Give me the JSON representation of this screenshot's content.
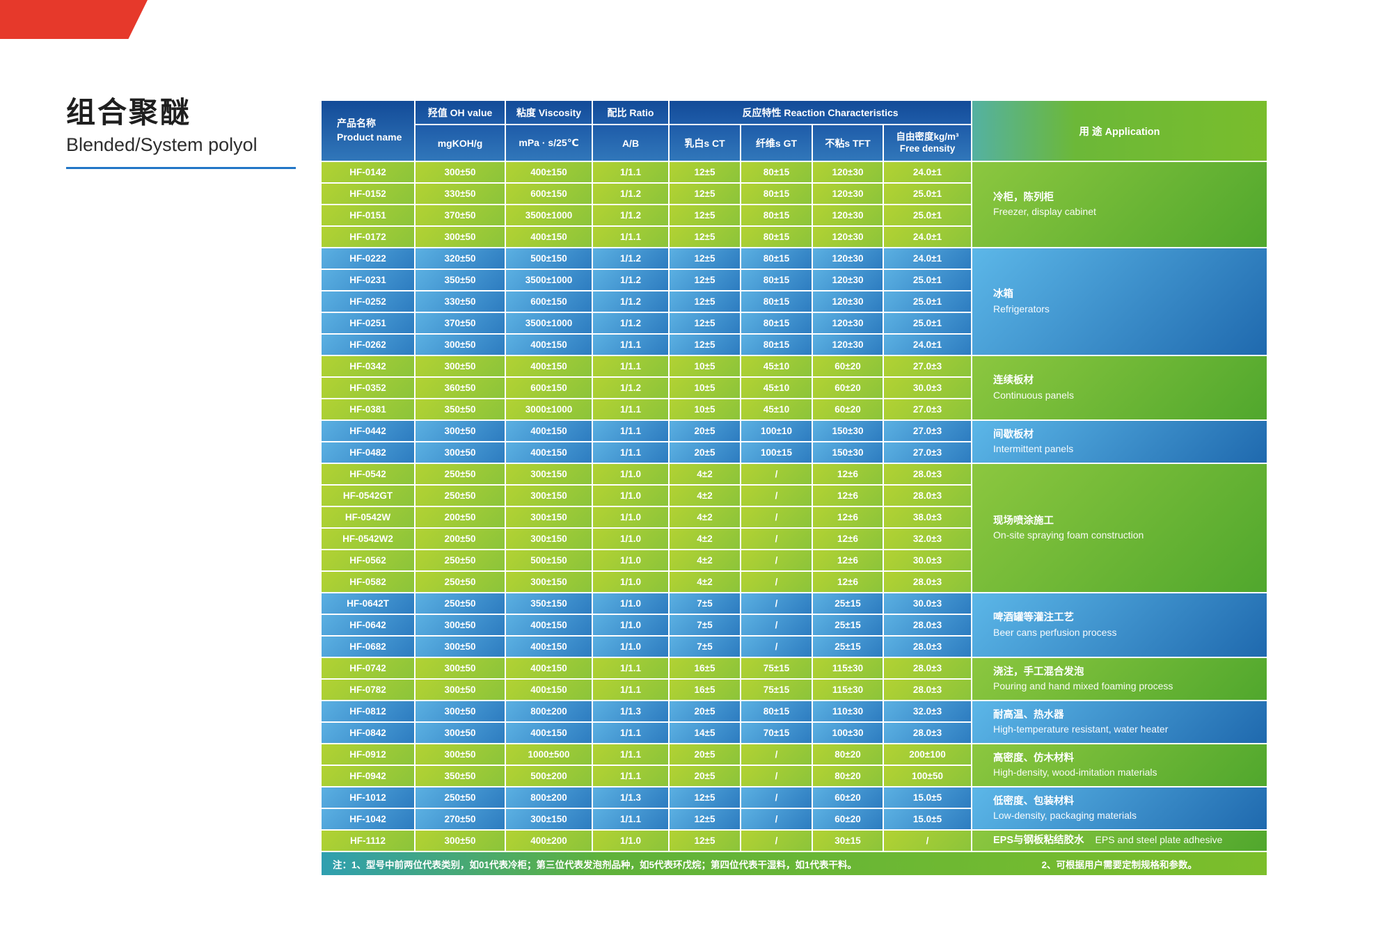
{
  "page": {
    "title_zh": "组合聚醚",
    "title_en": "Blended/System polyol"
  },
  "colors": {
    "flag_red": "#e6392b",
    "title_rule_blue": "#2176c7",
    "header_blue": "#17519f",
    "row_green": "#9cc935",
    "row_blue": "#3f93d0",
    "app_green": "#6db434",
    "app_blue": "#3487c6",
    "note_bar_left_teal": "#2f9fb0",
    "note_bar_right_green": "#7cbe2b",
    "table_text": "#ffffff"
  },
  "table": {
    "headers": {
      "product": {
        "zh": "产品名称",
        "en": "Product name"
      },
      "oh": {
        "zh": "羟值 OH value",
        "unit": "mgKOH/g"
      },
      "viscosity": {
        "zh": "粘度 Viscosity",
        "unit": "mPa · s/25℃"
      },
      "ratio": {
        "zh": "配比 Ratio",
        "unit": "A/B"
      },
      "reaction": {
        "zh": "反应特性 Reaction Characteristics",
        "sub": [
          "乳白s CT",
          "纤维s GT",
          "不粘s TFT"
        ]
      },
      "density": {
        "zh": "自由密度kg/m³",
        "en": "Free density"
      },
      "application": "用 途 Application"
    },
    "groups": [
      {
        "color": "green",
        "application_zh": "冷柜，陈列柜",
        "application_en": "Freezer, display cabinet",
        "rows": [
          [
            "HF-0142",
            "300±50",
            "400±150",
            "1/1.1",
            "12±5",
            "80±15",
            "120±30",
            "24.0±1"
          ],
          [
            "HF-0152",
            "330±50",
            "600±150",
            "1/1.2",
            "12±5",
            "80±15",
            "120±30",
            "25.0±1"
          ],
          [
            "HF-0151",
            "370±50",
            "3500±1000",
            "1/1.2",
            "12±5",
            "80±15",
            "120±30",
            "25.0±1"
          ],
          [
            "HF-0172",
            "300±50",
            "400±150",
            "1/1.1",
            "12±5",
            "80±15",
            "120±30",
            "24.0±1"
          ]
        ]
      },
      {
        "color": "blue",
        "application_zh": "冰箱",
        "application_en": "Refrigerators",
        "rows": [
          [
            "HF-0222",
            "320±50",
            "500±150",
            "1/1.2",
            "12±5",
            "80±15",
            "120±30",
            "24.0±1"
          ],
          [
            "HF-0231",
            "350±50",
            "3500±1000",
            "1/1.2",
            "12±5",
            "80±15",
            "120±30",
            "25.0±1"
          ],
          [
            "HF-0252",
            "330±50",
            "600±150",
            "1/1.2",
            "12±5",
            "80±15",
            "120±30",
            "25.0±1"
          ],
          [
            "HF-0251",
            "370±50",
            "3500±1000",
            "1/1.2",
            "12±5",
            "80±15",
            "120±30",
            "25.0±1"
          ],
          [
            "HF-0262",
            "300±50",
            "400±150",
            "1/1.1",
            "12±5",
            "80±15",
            "120±30",
            "24.0±1"
          ]
        ]
      },
      {
        "color": "green",
        "application_zh": "连续板材",
        "application_en": "Continuous panels",
        "rows": [
          [
            "HF-0342",
            "300±50",
            "400±150",
            "1/1.1",
            "10±5",
            "45±10",
            "60±20",
            "27.0±3"
          ],
          [
            "HF-0352",
            "360±50",
            "600±150",
            "1/1.2",
            "10±5",
            "45±10",
            "60±20",
            "30.0±3"
          ],
          [
            "HF-0381",
            "350±50",
            "3000±1000",
            "1/1.1",
            "10±5",
            "45±10",
            "60±20",
            "27.0±3"
          ]
        ]
      },
      {
        "color": "blue",
        "application_zh": "间歇板材",
        "application_en": "Intermittent panels",
        "rows": [
          [
            "HF-0442",
            "300±50",
            "400±150",
            "1/1.1",
            "20±5",
            "100±10",
            "150±30",
            "27.0±3"
          ],
          [
            "HF-0482",
            "300±50",
            "400±150",
            "1/1.1",
            "20±5",
            "100±15",
            "150±30",
            "27.0±3"
          ]
        ]
      },
      {
        "color": "green",
        "application_zh": "现场喷涂施工",
        "application_en": "On-site spraying foam construction",
        "rows": [
          [
            "HF-0542",
            "250±50",
            "300±150",
            "1/1.0",
            "4±2",
            "/",
            "12±6",
            "28.0±3"
          ],
          [
            "HF-0542GT",
            "250±50",
            "300±150",
            "1/1.0",
            "4±2",
            "/",
            "12±6",
            "28.0±3"
          ],
          [
            "HF-0542W",
            "200±50",
            "300±150",
            "1/1.0",
            "4±2",
            "/",
            "12±6",
            "38.0±3"
          ],
          [
            "HF-0542W2",
            "200±50",
            "300±150",
            "1/1.0",
            "4±2",
            "/",
            "12±6",
            "32.0±3"
          ],
          [
            "HF-0562",
            "250±50",
            "500±150",
            "1/1.0",
            "4±2",
            "/",
            "12±6",
            "30.0±3"
          ],
          [
            "HF-0582",
            "250±50",
            "300±150",
            "1/1.0",
            "4±2",
            "/",
            "12±6",
            "28.0±3"
          ]
        ]
      },
      {
        "color": "blue",
        "application_zh": "啤酒罐等灌注工艺",
        "application_en": "Beer cans perfusion process",
        "rows": [
          [
            "HF-0642T",
            "250±50",
            "350±150",
            "1/1.0",
            "7±5",
            "/",
            "25±15",
            "30.0±3"
          ],
          [
            "HF-0642",
            "300±50",
            "400±150",
            "1/1.0",
            "7±5",
            "/",
            "25±15",
            "28.0±3"
          ],
          [
            "HF-0682",
            "300±50",
            "400±150",
            "1/1.0",
            "7±5",
            "/",
            "25±15",
            "28.0±3"
          ]
        ]
      },
      {
        "color": "green",
        "application_zh": "浇注，手工混合发泡",
        "application_en": "Pouring and hand mixed foaming process",
        "rows": [
          [
            "HF-0742",
            "300±50",
            "400±150",
            "1/1.1",
            "16±5",
            "75±15",
            "115±30",
            "28.0±3"
          ],
          [
            "HF-0782",
            "300±50",
            "400±150",
            "1/1.1",
            "16±5",
            "75±15",
            "115±30",
            "28.0±3"
          ]
        ]
      },
      {
        "color": "blue",
        "application_zh": "耐高温、热水器",
        "application_en": "High-temperature resistant, water heater",
        "rows": [
          [
            "HF-0812",
            "300±50",
            "800±200",
            "1/1.3",
            "20±5",
            "80±15",
            "110±30",
            "32.0±3"
          ],
          [
            "HF-0842",
            "300±50",
            "400±150",
            "1/1.1",
            "14±5",
            "70±15",
            "100±30",
            "28.0±3"
          ]
        ]
      },
      {
        "color": "green",
        "application_zh": "高密度、仿木材料",
        "application_en": "High-density, wood-imitation materials",
        "rows": [
          [
            "HF-0912",
            "300±50",
            "1000±500",
            "1/1.1",
            "20±5",
            "/",
            "80±20",
            "200±100"
          ],
          [
            "HF-0942",
            "350±50",
            "500±200",
            "1/1.1",
            "20±5",
            "/",
            "80±20",
            "100±50"
          ]
        ]
      },
      {
        "color": "blue",
        "application_zh": "低密度、包装材料",
        "application_en": "Low-density, packaging materials",
        "rows": [
          [
            "HF-1012",
            "250±50",
            "800±200",
            "1/1.3",
            "12±5",
            "/",
            "60±20",
            "15.0±5"
          ],
          [
            "HF-1042",
            "270±50",
            "300±150",
            "1/1.1",
            "12±5",
            "/",
            "60±20",
            "15.0±5"
          ]
        ]
      },
      {
        "color": "green",
        "inline": true,
        "application_zh": "EPS与钢板粘结胶水",
        "application_en": "EPS and steel plate adhesive",
        "rows": [
          [
            "HF-1112",
            "300±50",
            "400±200",
            "1/1.0",
            "12±5",
            "/",
            "30±15",
            "/"
          ]
        ]
      }
    ],
    "note": {
      "item1": "注：1、型号中前两位代表类别，如01代表冷柜；第三位代表发泡剂品种，如5代表环戊烷；第四位代表干湿料，如1代表干料。",
      "item2": "2、可根据用户需要定制规格和参数。"
    }
  }
}
